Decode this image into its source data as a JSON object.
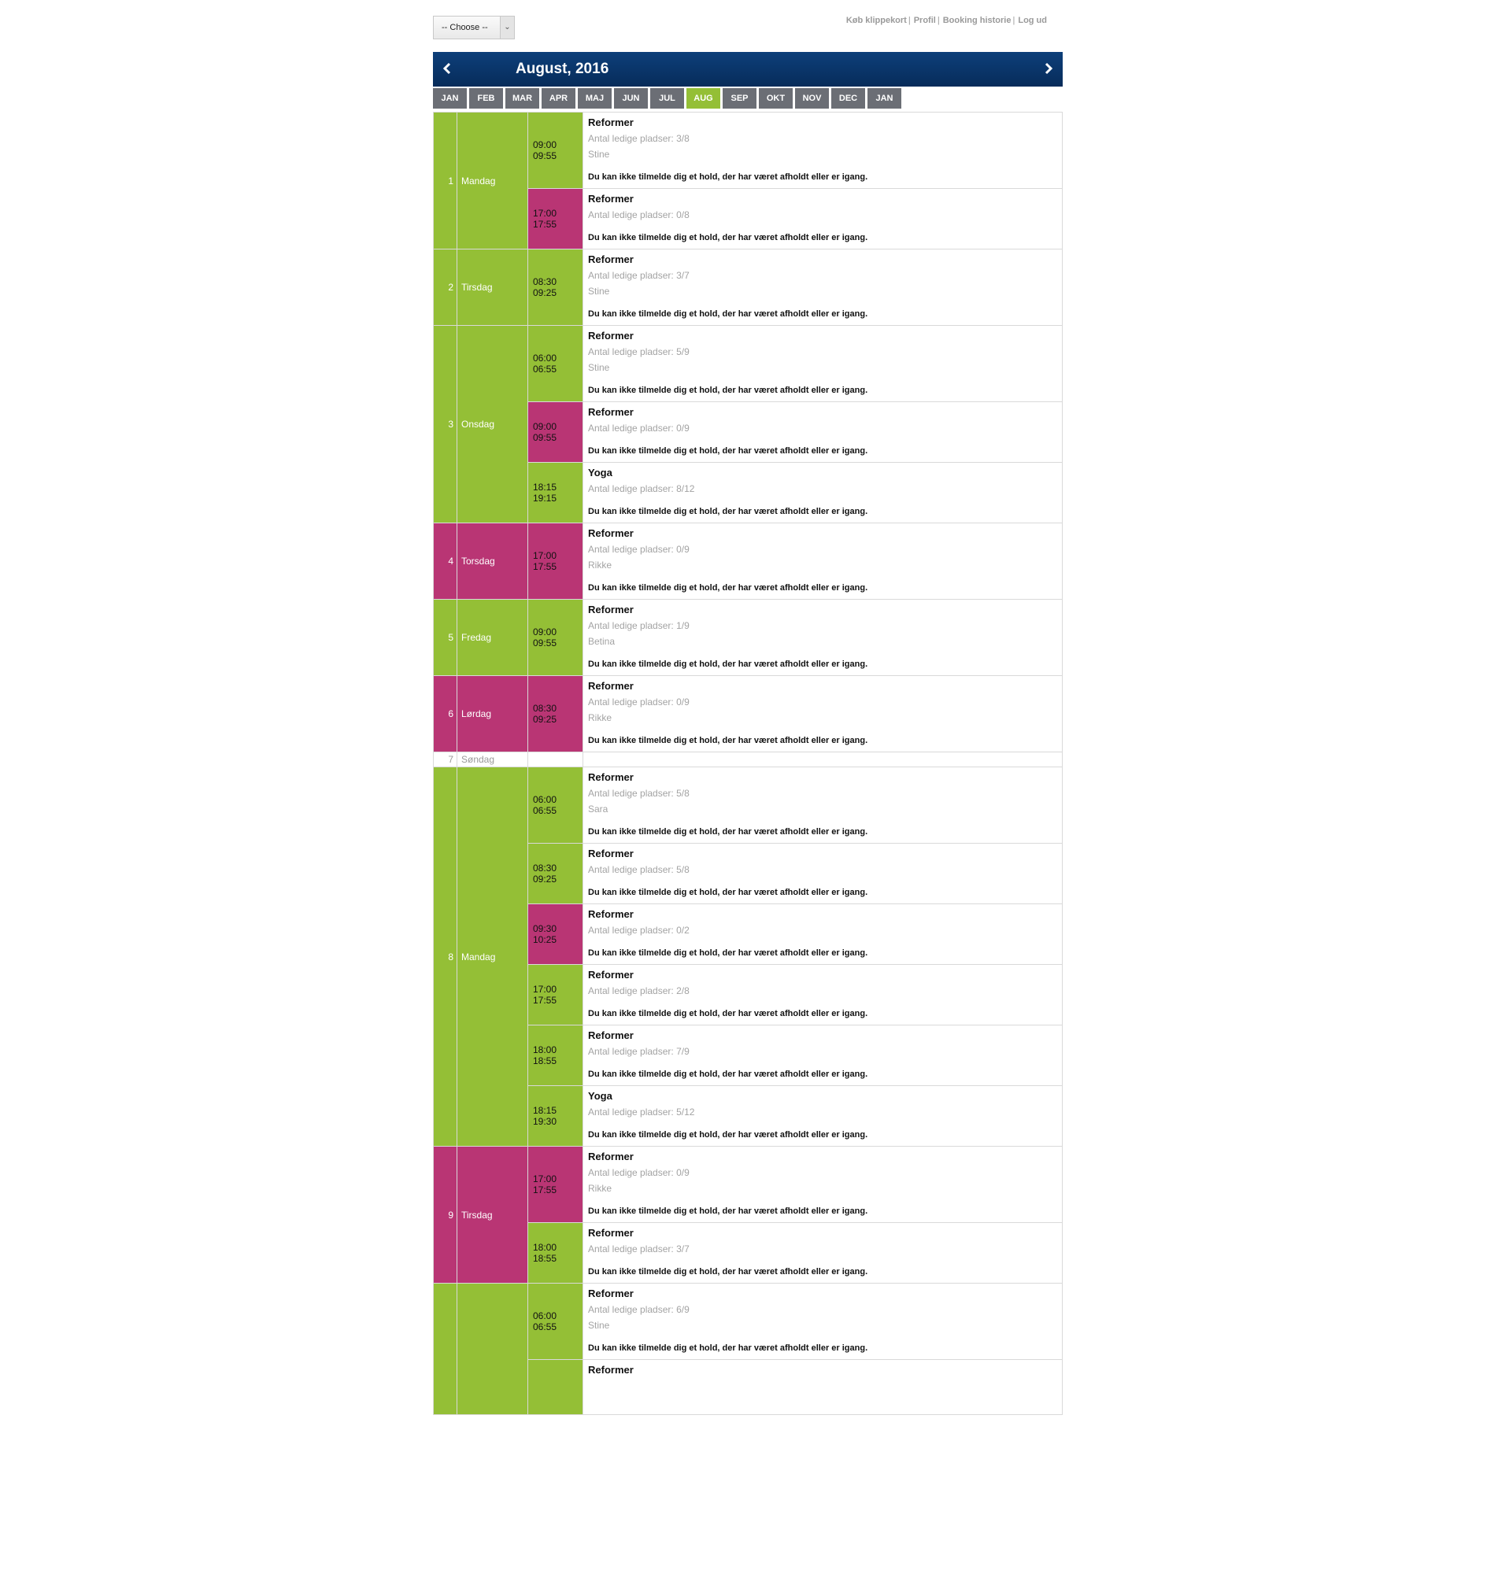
{
  "choose": {
    "label": "-- Choose --"
  },
  "usernav": [
    {
      "label": "Køb klippekort"
    },
    {
      "label": "Profil"
    },
    {
      "label": "Booking historie"
    },
    {
      "label": "Log ud"
    }
  ],
  "header": {
    "title": "August, 2016"
  },
  "months": [
    "JAN",
    "FEB",
    "MAR",
    "APR",
    "MAJ",
    "JUN",
    "JUL",
    "AUG",
    "SEP",
    "OKT",
    "NOV",
    "DEC",
    "JAN"
  ],
  "active_month_index": 7,
  "colors": {
    "green": "#94bf36",
    "pink": "#b93574",
    "navy": "#0d3f7a",
    "tab": "#6b6e75"
  },
  "common": {
    "spots_prefix": "Antal ledige pladser: ",
    "note": "Du kan ikke tilmelde dig et hold, der har været afholdt eller er igang."
  },
  "days": [
    {
      "num": "1",
      "name": "Mandag",
      "color": "green",
      "sessions": [
        {
          "start": "09:00",
          "end": "09:55",
          "color": "green",
          "class": "Reformer",
          "spots": "3/8",
          "instructor": "Stine"
        },
        {
          "start": "17:00",
          "end": "17:55",
          "color": "pink",
          "class": "Reformer",
          "spots": "0/8",
          "instructor": ""
        }
      ]
    },
    {
      "num": "2",
      "name": "Tirsdag",
      "color": "green",
      "sessions": [
        {
          "start": "08:30",
          "end": "09:25",
          "color": "green",
          "class": "Reformer",
          "spots": "3/7",
          "instructor": "Stine"
        }
      ]
    },
    {
      "num": "3",
      "name": "Onsdag",
      "color": "green",
      "sessions": [
        {
          "start": "06:00",
          "end": "06:55",
          "color": "green",
          "class": "Reformer",
          "spots": "5/9",
          "instructor": "Stine"
        },
        {
          "start": "09:00",
          "end": "09:55",
          "color": "pink",
          "class": "Reformer",
          "spots": "0/9",
          "instructor": ""
        },
        {
          "start": "18:15",
          "end": "19:15",
          "color": "green",
          "class": "Yoga",
          "spots": "8/12",
          "instructor": ""
        }
      ]
    },
    {
      "num": "4",
      "name": "Torsdag",
      "color": "pink",
      "sessions": [
        {
          "start": "17:00",
          "end": "17:55",
          "color": "pink",
          "class": "Reformer",
          "spots": "0/9",
          "instructor": "Rikke"
        }
      ]
    },
    {
      "num": "5",
      "name": "Fredag",
      "color": "green",
      "sessions": [
        {
          "start": "09:00",
          "end": "09:55",
          "color": "green",
          "class": "Reformer",
          "spots": "1/9",
          "instructor": "Betina"
        }
      ]
    },
    {
      "num": "6",
      "name": "Lørdag",
      "color": "pink",
      "sessions": [
        {
          "start": "08:30",
          "end": "09:25",
          "color": "pink",
          "class": "Reformer",
          "spots": "0/9",
          "instructor": "Rikke"
        }
      ]
    },
    {
      "num": "7",
      "name": "Søndag",
      "color": "white",
      "sessions": []
    },
    {
      "num": "8",
      "name": "Mandag",
      "color": "green",
      "sessions": [
        {
          "start": "06:00",
          "end": "06:55",
          "color": "green",
          "class": "Reformer",
          "spots": "5/8",
          "instructor": "Sara"
        },
        {
          "start": "08:30",
          "end": "09:25",
          "color": "green",
          "class": "Reformer",
          "spots": "5/8",
          "instructor": ""
        },
        {
          "start": "09:30",
          "end": "10:25",
          "color": "pink",
          "class": "Reformer",
          "spots": "0/2",
          "instructor": ""
        },
        {
          "start": "17:00",
          "end": "17:55",
          "color": "green",
          "class": "Reformer",
          "spots": "2/8",
          "instructor": ""
        },
        {
          "start": "18:00",
          "end": "18:55",
          "color": "green",
          "class": "Reformer",
          "spots": "7/9",
          "instructor": ""
        },
        {
          "start": "18:15",
          "end": "19:30",
          "color": "green",
          "class": "Yoga",
          "spots": "5/12",
          "instructor": ""
        }
      ]
    },
    {
      "num": "9",
      "name": "Tirsdag",
      "color": "pink",
      "sessions": [
        {
          "start": "17:00",
          "end": "17:55",
          "color": "pink",
          "class": "Reformer",
          "spots": "0/9",
          "instructor": "Rikke"
        },
        {
          "start": "18:00",
          "end": "18:55",
          "color": "green",
          "class": "Reformer",
          "spots": "3/7",
          "instructor": ""
        }
      ]
    },
    {
      "num": "",
      "name": "",
      "color": "green",
      "sessions": [
        {
          "start": "06:00",
          "end": "06:55",
          "color": "green",
          "class": "Reformer",
          "spots": "6/9",
          "instructor": "Stine"
        },
        {
          "start": "",
          "end": "",
          "color": "green",
          "class": "Reformer",
          "spots": "",
          "instructor": ""
        }
      ]
    }
  ]
}
